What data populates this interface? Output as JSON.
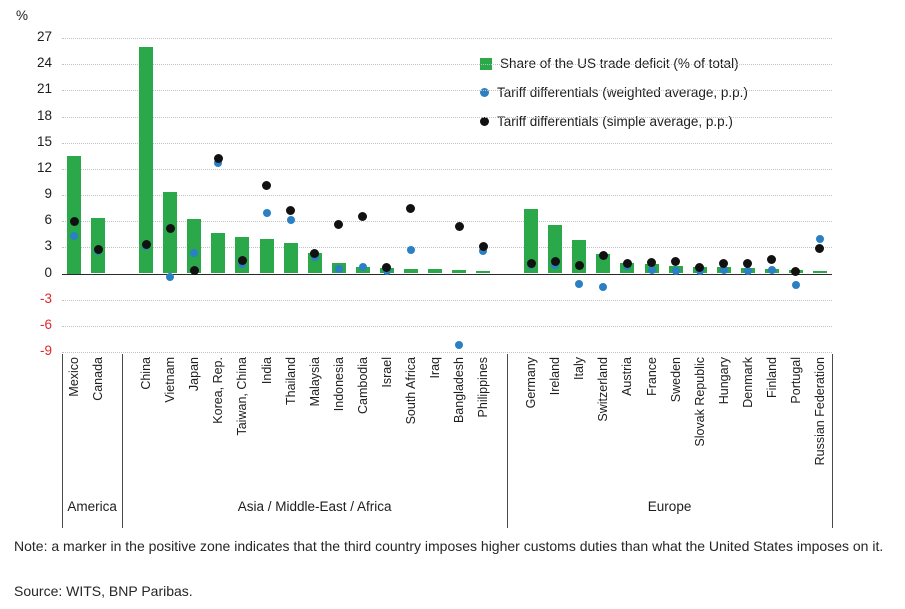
{
  "footer": {
    "note": "Note: a marker in the positive zone indicates that the third country imposes higher customs duties than what the United States imposes on it.",
    "source": "Source: WITS, BNP Paribas."
  },
  "chart_data": {
    "type": "bar+scatter",
    "unit": "%",
    "ylim": [
      -9,
      27
    ],
    "ytick_step": 3,
    "yticks": [
      -9,
      -6,
      -3,
      0,
      3,
      6,
      9,
      12,
      15,
      18,
      21,
      24,
      27
    ],
    "axis_negative_color": "#e0262c",
    "grid": true,
    "legend_position": "top-right-inside",
    "series": [
      {
        "name": "Share of the US trade deficit (% of total)",
        "type": "bar",
        "color": "#2aa84a",
        "key": "share"
      },
      {
        "name": "Tariff differentials (weighted average, p.p.)",
        "type": "scatter",
        "color": "#2b7fc3",
        "key": "weighted"
      },
      {
        "name": "Tariff differentials (simple average, p.p.)",
        "type": "scatter",
        "color": "#111111",
        "key": "simple"
      }
    ],
    "groups": [
      {
        "label": "America",
        "countries": [
          {
            "name": "Mexico",
            "share": 13.5,
            "weighted": 4.3,
            "simple": 6.0
          },
          {
            "name": "Canada",
            "share": 6.4,
            "weighted": 2.6,
            "simple": 2.8
          }
        ]
      },
      {
        "label": "Asia / Middle-East / Africa",
        "countries": [
          {
            "name": "China",
            "share": 26.0,
            "weighted": 3.1,
            "simple": 3.3
          },
          {
            "name": "Vietnam",
            "share": 9.3,
            "weighted": -0.4,
            "simple": 5.2
          },
          {
            "name": "Japan",
            "share": 6.3,
            "weighted": 2.3,
            "simple": 0.4
          },
          {
            "name": "Korea, Rep.",
            "share": 4.6,
            "weighted": 12.7,
            "simple": 13.2
          },
          {
            "name": "Taiwan, China",
            "share": 4.2,
            "weighted": 1.1,
            "simple": 1.5
          },
          {
            "name": "India",
            "share": 3.9,
            "weighted": 6.9,
            "simple": 10.1
          },
          {
            "name": "Thailand",
            "share": 3.5,
            "weighted": 6.1,
            "simple": 7.2
          },
          {
            "name": "Malaysia",
            "share": 2.4,
            "weighted": 1.9,
            "simple": 2.3
          },
          {
            "name": "Indonesia",
            "share": 1.2,
            "weighted": 0.5,
            "simple": 5.6
          },
          {
            "name": "Cambodia",
            "share": 0.8,
            "weighted": 0.8,
            "simple": 6.5
          },
          {
            "name": "Israel",
            "share": 0.6,
            "weighted": 0.3,
            "simple": 0.7
          },
          {
            "name": "South Africa",
            "share": 0.5,
            "weighted": 2.7,
            "simple": 7.5
          },
          {
            "name": "Iraq",
            "share": 0.5,
            "weighted": null,
            "simple": null
          },
          {
            "name": "Bangladesh",
            "share": 0.4,
            "weighted": -8.2,
            "simple": 5.4
          },
          {
            "name": "Philippines",
            "share": 0.3,
            "weighted": 2.6,
            "simple": 3.1
          }
        ]
      },
      {
        "label": "Europe",
        "countries": [
          {
            "name": "Germany",
            "share": 7.4,
            "weighted": 1.0,
            "simple": 1.2
          },
          {
            "name": "Ireland",
            "share": 5.6,
            "weighted": 1.0,
            "simple": 1.4
          },
          {
            "name": "Italy",
            "share": 3.8,
            "weighted": -1.2,
            "simple": 0.9
          },
          {
            "name": "Switzerland",
            "share": 2.2,
            "weighted": -1.6,
            "simple": 2.1
          },
          {
            "name": "Austria",
            "share": 1.2,
            "weighted": 0.9,
            "simple": 1.2
          },
          {
            "name": "France",
            "share": 1.1,
            "weighted": 0.4,
            "simple": 1.3
          },
          {
            "name": "Sweden",
            "share": 0.9,
            "weighted": 0.3,
            "simple": 1.4
          },
          {
            "name": "Slovak Republic",
            "share": 0.8,
            "weighted": 0.3,
            "simple": 0.7
          },
          {
            "name": "Hungary",
            "share": 0.7,
            "weighted": 0.4,
            "simple": 1.1
          },
          {
            "name": "Denmark",
            "share": 0.6,
            "weighted": 0.3,
            "simple": 1.2
          },
          {
            "name": "Finland",
            "share": 0.5,
            "weighted": 0.4,
            "simple": 1.6
          },
          {
            "name": "Portugal",
            "share": 0.4,
            "weighted": -1.3,
            "simple": 0.2
          },
          {
            "name": "Russian Federation",
            "share": 0.3,
            "weighted": 4.0,
            "simple": 2.9
          }
        ]
      }
    ]
  }
}
